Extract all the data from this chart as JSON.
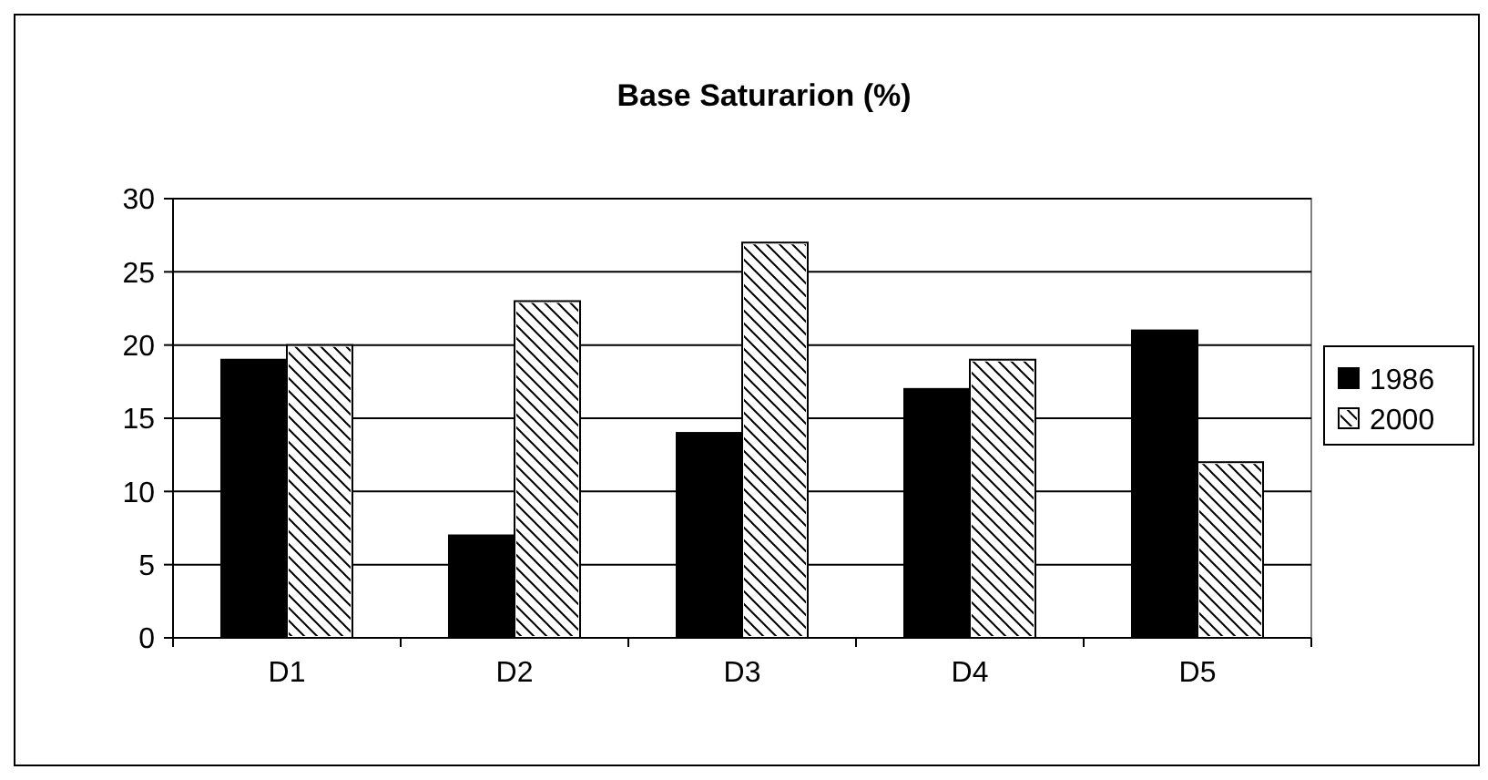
{
  "chart_data": {
    "type": "bar",
    "title": "Base Saturarion (%)",
    "categories": [
      "D1",
      "D2",
      "D3",
      "D4",
      "D5"
    ],
    "series": [
      {
        "name": "1986",
        "color": "#000000",
        "values": [
          19,
          7,
          14,
          17,
          21
        ]
      },
      {
        "name": "2000",
        "color": "#ffffff",
        "values": [
          20,
          23,
          27,
          19,
          12
        ]
      }
    ],
    "ylim": [
      0,
      30
    ],
    "yticks": [
      0,
      5,
      10,
      15,
      20,
      25,
      30
    ],
    "grid": "y",
    "legend": "right"
  }
}
